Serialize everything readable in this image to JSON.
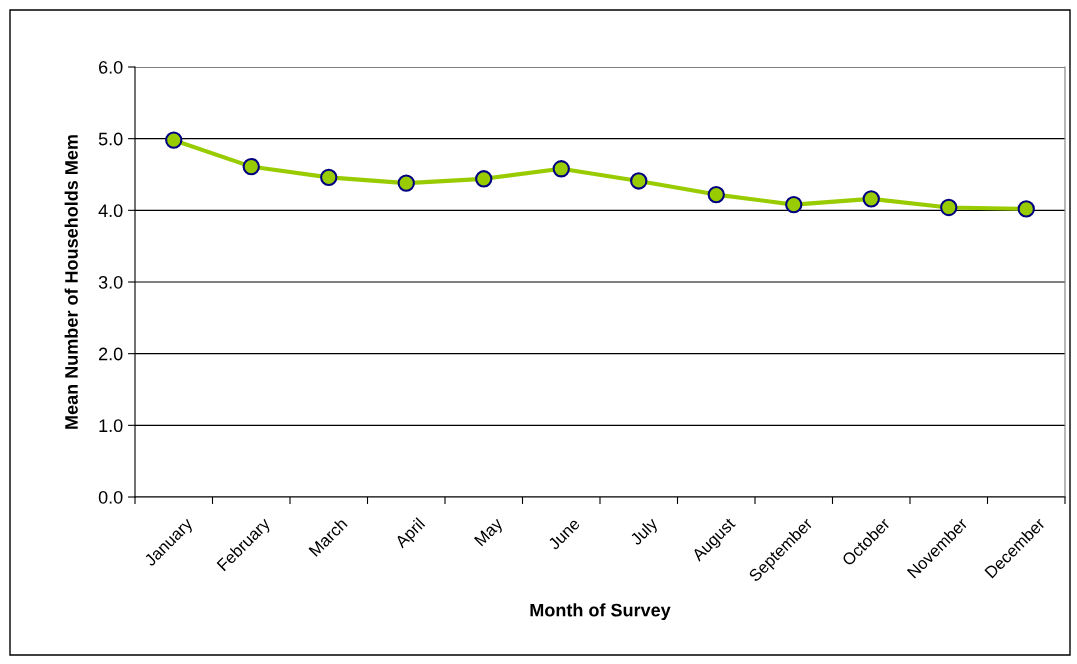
{
  "chart_data": {
    "type": "line",
    "xlabel": "Month of Survey",
    "ylabel": "Mean Number of Households Mem",
    "categories": [
      "January",
      "February",
      "March",
      "April",
      "May",
      "June",
      "July",
      "August",
      "September",
      "October",
      "November",
      "December"
    ],
    "series": [
      {
        "color": "#99cc00",
        "values": [
          4.98,
          4.61,
          4.46,
          4.38,
          4.44,
          4.58,
          4.41,
          4.22,
          4.08,
          4.16,
          4.04,
          4.02
        ]
      }
    ],
    "ylim": [
      0,
      6
    ],
    "yticks": [
      {
        "value": 0,
        "label": "0.0"
      },
      {
        "value": 1,
        "label": "1.0"
      },
      {
        "value": 2,
        "label": "2.0"
      },
      {
        "value": 3,
        "label": "3.0"
      },
      {
        "value": 4,
        "label": "4.0"
      },
      {
        "value": 5,
        "label": "5.0"
      },
      {
        "value": 6,
        "label": "6.0"
      }
    ],
    "grid": "y",
    "marker": "circle",
    "line_style": "solid",
    "legend": false
  }
}
